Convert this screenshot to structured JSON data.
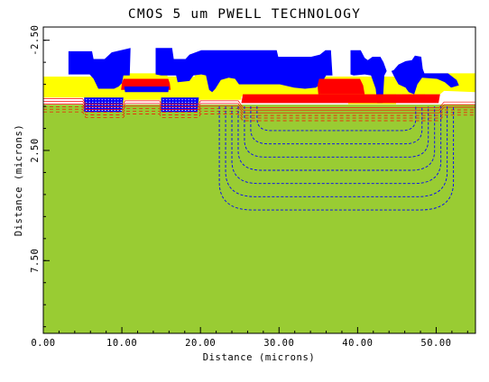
{
  "chart_data": {
    "type": "area",
    "title": "CMOS 5 um PWELL TECHNOLOGY",
    "xlabel": "Distance (microns)",
    "ylabel": "Distance (microns)",
    "xlim": [
      0,
      55
    ],
    "ylim": [
      -3.1,
      10.8
    ],
    "y_inverted": true,
    "grid": false,
    "legend": "none",
    "xticks": [
      {
        "value": 0,
        "label": "0.00"
      },
      {
        "value": 10,
        "label": "10.00"
      },
      {
        "value": 20,
        "label": "20.00"
      },
      {
        "value": 30,
        "label": "30.00"
      },
      {
        "value": 40,
        "label": "40.00"
      },
      {
        "value": 50,
        "label": "50.00"
      }
    ],
    "yticks": [
      {
        "value": -2.5,
        "label": "-2.50"
      },
      {
        "value": 2.5,
        "label": "2.50"
      },
      {
        "value": 7.5,
        "label": "7.50"
      }
    ],
    "colors": {
      "substrate": "#99cc33",
      "oxide": "#ffff00",
      "metal": "#0000ff",
      "polysilicon": "#ff0000",
      "well_contours": "#0000ff",
      "frame": "#000000",
      "background": "#ffffff"
    },
    "series": [
      {
        "material": "substrate",
        "points": [
          [
            0,
            0.42
          ],
          [
            55,
            0.42
          ],
          [
            55,
            10.8
          ],
          [
            0,
            10.8
          ]
        ]
      },
      {
        "material": "oxide",
        "points": [
          [
            0,
            -0.85
          ],
          [
            9.6,
            -0.85
          ],
          [
            9.6,
            -1.0
          ],
          [
            15.8,
            -1.0
          ],
          [
            15.8,
            -0.85
          ],
          [
            19.3,
            -0.85
          ],
          [
            19.3,
            -0.95
          ],
          [
            25.4,
            -0.95
          ],
          [
            25.4,
            -0.85
          ],
          [
            50.5,
            -0.85
          ],
          [
            50.5,
            -1.0
          ],
          [
            55,
            -1.0
          ],
          [
            55,
            -0.15
          ],
          [
            51,
            -0.2
          ],
          [
            50.5,
            -0.05
          ],
          [
            48.6,
            -0.05
          ],
          [
            48.6,
            0.1
          ],
          [
            45.7,
            0.1
          ],
          [
            45.7,
            -0.05
          ],
          [
            44.9,
            -0.05
          ],
          [
            44.9,
            0.4
          ],
          [
            38.8,
            0.4
          ],
          [
            38.8,
            0.05
          ],
          [
            25.2,
            0.05
          ],
          [
            25.2,
            0.2
          ],
          [
            19.9,
            0.2
          ],
          [
            19.9,
            0.35
          ],
          [
            14.9,
            0.35
          ],
          [
            14.9,
            0.2
          ],
          [
            10.3,
            0.2
          ],
          [
            10.3,
            0.35
          ],
          [
            5.2,
            0.35
          ],
          [
            5.2,
            0.1
          ],
          [
            0,
            0.1
          ]
        ]
      },
      {
        "material": "metal",
        "points": [
          [
            3.2,
            -2.0
          ],
          [
            6.2,
            -2.0
          ],
          [
            6.4,
            -1.65
          ],
          [
            7.8,
            -1.65
          ],
          [
            8.7,
            -1.95
          ],
          [
            11.1,
            -2.15
          ],
          [
            11.0,
            -0.9
          ],
          [
            10.2,
            -0.9
          ],
          [
            10.0,
            -0.55
          ],
          [
            9.6,
            -0.4
          ],
          [
            9.0,
            -0.3
          ],
          [
            7.0,
            -0.3
          ],
          [
            6.6,
            -0.6
          ],
          [
            6.4,
            -0.75
          ],
          [
            5.9,
            -0.95
          ],
          [
            3.2,
            -0.95
          ]
        ]
      },
      {
        "material": "metal",
        "points": [
          [
            14.3,
            -2.15
          ],
          [
            16.4,
            -2.15
          ],
          [
            16.6,
            -1.65
          ],
          [
            18.1,
            -1.65
          ],
          [
            18.6,
            -1.85
          ],
          [
            20.1,
            -2.05
          ],
          [
            29.7,
            -2.05
          ],
          [
            29.9,
            -1.75
          ],
          [
            34.1,
            -1.75
          ],
          [
            35.2,
            -1.85
          ],
          [
            35.9,
            -2.05
          ],
          [
            36.6,
            -2.05
          ],
          [
            36.8,
            -0.9
          ],
          [
            36.0,
            -0.9
          ],
          [
            35.4,
            -0.55
          ],
          [
            34.7,
            -0.35
          ],
          [
            33.3,
            -0.3
          ],
          [
            31.9,
            -0.35
          ],
          [
            30.1,
            -0.5
          ],
          [
            24.9,
            -0.5
          ],
          [
            24.4,
            -0.75
          ],
          [
            23.6,
            -0.8
          ],
          [
            22.6,
            -0.7
          ],
          [
            21.9,
            -0.3
          ],
          [
            21.5,
            -0.15
          ],
          [
            21.1,
            -0.25
          ],
          [
            20.7,
            -0.9
          ],
          [
            20.1,
            -0.95
          ],
          [
            19.1,
            -0.9
          ],
          [
            18.6,
            -0.65
          ],
          [
            17.1,
            -0.6
          ],
          [
            16.9,
            -0.9
          ],
          [
            15.0,
            -0.9
          ],
          [
            14.3,
            -0.95
          ]
        ]
      },
      {
        "material": "metal",
        "points": [
          [
            39.1,
            -2.05
          ],
          [
            40.4,
            -2.05
          ],
          [
            40.9,
            -1.7
          ],
          [
            41.3,
            -1.6
          ],
          [
            41.9,
            -1.75
          ],
          [
            42.9,
            -1.75
          ],
          [
            43.3,
            -1.5
          ],
          [
            43.7,
            -1.1
          ],
          [
            43.4,
            -0.9
          ],
          [
            43.2,
            0.35
          ],
          [
            42.5,
            0.35
          ],
          [
            42.3,
            -0.3
          ],
          [
            41.7,
            -0.9
          ],
          [
            40.9,
            -0.95
          ],
          [
            39.5,
            -0.9
          ],
          [
            39.1,
            -0.95
          ]
        ]
      },
      {
        "material": "metal",
        "points": [
          [
            44.3,
            -1.1
          ],
          [
            44.6,
            -1.15
          ],
          [
            45.2,
            -1.4
          ],
          [
            46.1,
            -1.55
          ],
          [
            46.9,
            -1.6
          ],
          [
            47.3,
            -1.8
          ],
          [
            48.1,
            -1.75
          ],
          [
            48.3,
            -1.2
          ],
          [
            48.5,
            -1.0
          ],
          [
            51.5,
            -1.0
          ],
          [
            52.6,
            -0.7
          ],
          [
            52.9,
            -0.45
          ],
          [
            51.9,
            -0.35
          ],
          [
            51.1,
            -0.6
          ],
          [
            50.1,
            -0.75
          ],
          [
            48.2,
            -0.8
          ],
          [
            47.6,
            -0.5
          ],
          [
            47.2,
            -0.05
          ],
          [
            46.5,
            -0.15
          ],
          [
            46.1,
            -0.35
          ],
          [
            45.2,
            -0.5
          ],
          [
            44.8,
            -0.75
          ]
        ]
      },
      {
        "material": "polysilicon",
        "points": [
          [
            10.2,
            -0.75
          ],
          [
            15.9,
            -0.75
          ],
          [
            16.1,
            -0.55
          ],
          [
            16.2,
            -0.25
          ],
          [
            9.9,
            -0.25
          ],
          [
            10.0,
            -0.55
          ]
        ]
      },
      {
        "material": "polysilicon",
        "points": [
          [
            35.1,
            -0.75
          ],
          [
            40.3,
            -0.75
          ],
          [
            40.7,
            -0.45
          ],
          [
            40.9,
            -0.05
          ],
          [
            35.0,
            -0.05
          ],
          [
            34.9,
            -0.45
          ]
        ]
      },
      {
        "material": "polysilicon",
        "points": [
          [
            25.4,
            -0.05
          ],
          [
            50.5,
            -0.05
          ],
          [
            50.3,
            0.35
          ],
          [
            25.2,
            0.35
          ]
        ]
      },
      {
        "material": "metal",
        "points": [
          [
            5.2,
            0.1
          ],
          [
            10.2,
            0.1
          ],
          [
            10.0,
            0.75
          ],
          [
            5.2,
            0.75
          ]
        ]
      },
      {
        "material": "metal",
        "points": [
          [
            15.0,
            0.1
          ],
          [
            19.8,
            0.1
          ],
          [
            19.6,
            0.75
          ],
          [
            15.0,
            0.75
          ]
        ]
      },
      {
        "material": "metal",
        "points": [
          [
            10.3,
            -0.4
          ],
          [
            16.0,
            -0.4
          ],
          [
            15.9,
            -0.15
          ],
          [
            10.4,
            -0.15
          ]
        ]
      }
    ],
    "well_contours": [
      {
        "x": [
          22.4,
          52.2
        ],
        "bottom": 5.2,
        "corner": 4.2
      },
      {
        "x": [
          23.2,
          51.4
        ],
        "bottom": 4.6,
        "corner": 3.8
      },
      {
        "x": [
          24.0,
          50.6
        ],
        "bottom": 4.0,
        "corner": 3.4
      },
      {
        "x": [
          24.8,
          49.8
        ],
        "bottom": 3.4,
        "corner": 3.0
      },
      {
        "x": [
          25.6,
          49.0
        ],
        "bottom": 2.8,
        "corner": 2.6
      },
      {
        "x": [
          26.4,
          48.2
        ],
        "bottom": 2.2,
        "corner": 2.2
      },
      {
        "x": [
          27.2,
          47.4
        ],
        "bottom": 1.6,
        "corner": 1.8
      }
    ]
  }
}
